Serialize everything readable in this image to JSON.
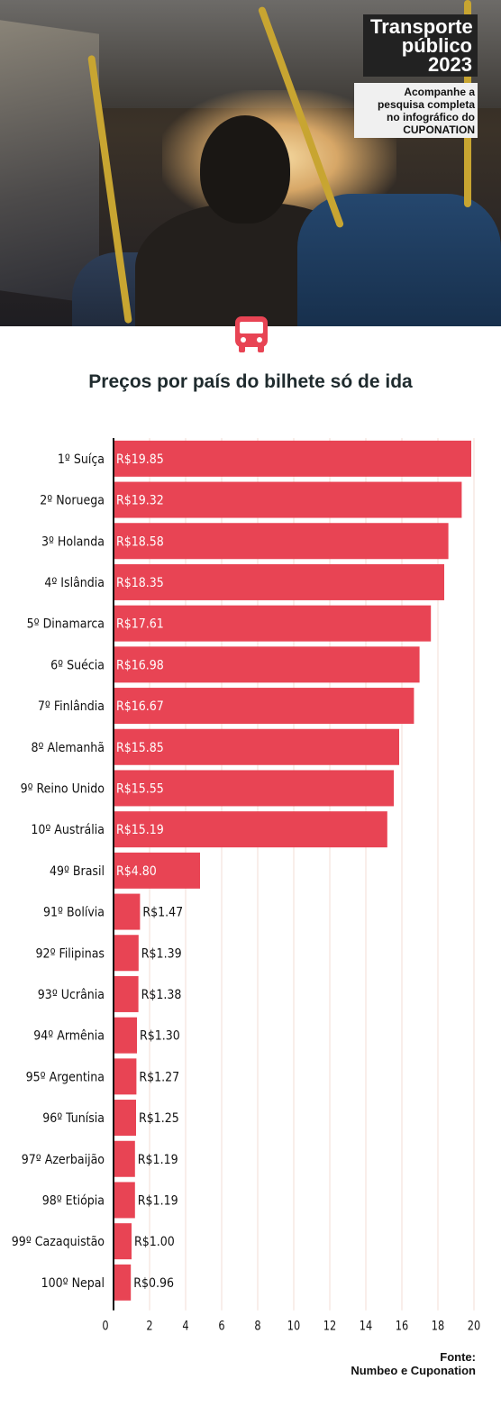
{
  "header": {
    "title_lines": [
      "Transporte",
      "público",
      "2023"
    ],
    "subtitle_lines": [
      "Acompanhe a",
      "pesquisa completa",
      "no infográfico do",
      "CUPONATION"
    ]
  },
  "icons": {
    "header": "bus-icon"
  },
  "colors": {
    "bar": "#e84454",
    "icon": "#e84454",
    "grid": "#f3dcd4",
    "axis": "#111111"
  },
  "chart_data": {
    "type": "bar",
    "orientation": "horizontal",
    "title": "Preços por país do bilhete só de ida",
    "categories": [
      "1º Suíça",
      "2º Noruega",
      "3º Holanda",
      "4º Islândia",
      "5º Dinamarca",
      "6º Suécia",
      "7º Finlândia",
      "8º Alemanhã",
      "9º Reino Unido",
      "10º Austrália",
      "49º Brasil",
      "91º Bolívia",
      "92º Filipinas",
      "93º Ucrânia",
      "94º Armênia",
      "95º Argentina",
      "96º Tunísia",
      "97º Azerbaijão",
      "98º Etiópia",
      "99º Cazaquistão",
      "100º Nepal"
    ],
    "values": [
      19.85,
      19.32,
      18.58,
      18.35,
      17.61,
      16.98,
      16.67,
      15.85,
      15.55,
      15.19,
      4.8,
      1.47,
      1.39,
      1.38,
      1.3,
      1.27,
      1.25,
      1.19,
      1.19,
      1.0,
      0.96
    ],
    "value_labels": [
      "R$19.85",
      "R$19.32",
      "R$18.58",
      "R$18.35",
      "R$17.61",
      "R$16.98",
      "R$16.67",
      "R$15.85",
      "R$15.55",
      "R$15.19",
      "R$4.80",
      "R$1.47",
      "R$1.39",
      "R$1.38",
      "R$1.30",
      "R$1.27",
      "R$1.25",
      "R$1.19",
      "R$1.19",
      "R$1.00",
      "R$0.96"
    ],
    "xlim": [
      0,
      20
    ],
    "xticks": [
      0,
      2,
      4,
      6,
      8,
      10,
      12,
      14,
      16,
      18,
      20
    ],
    "grid": true
  },
  "source": {
    "lines": [
      "Fonte:",
      "Numbeo e Cuponation"
    ]
  }
}
